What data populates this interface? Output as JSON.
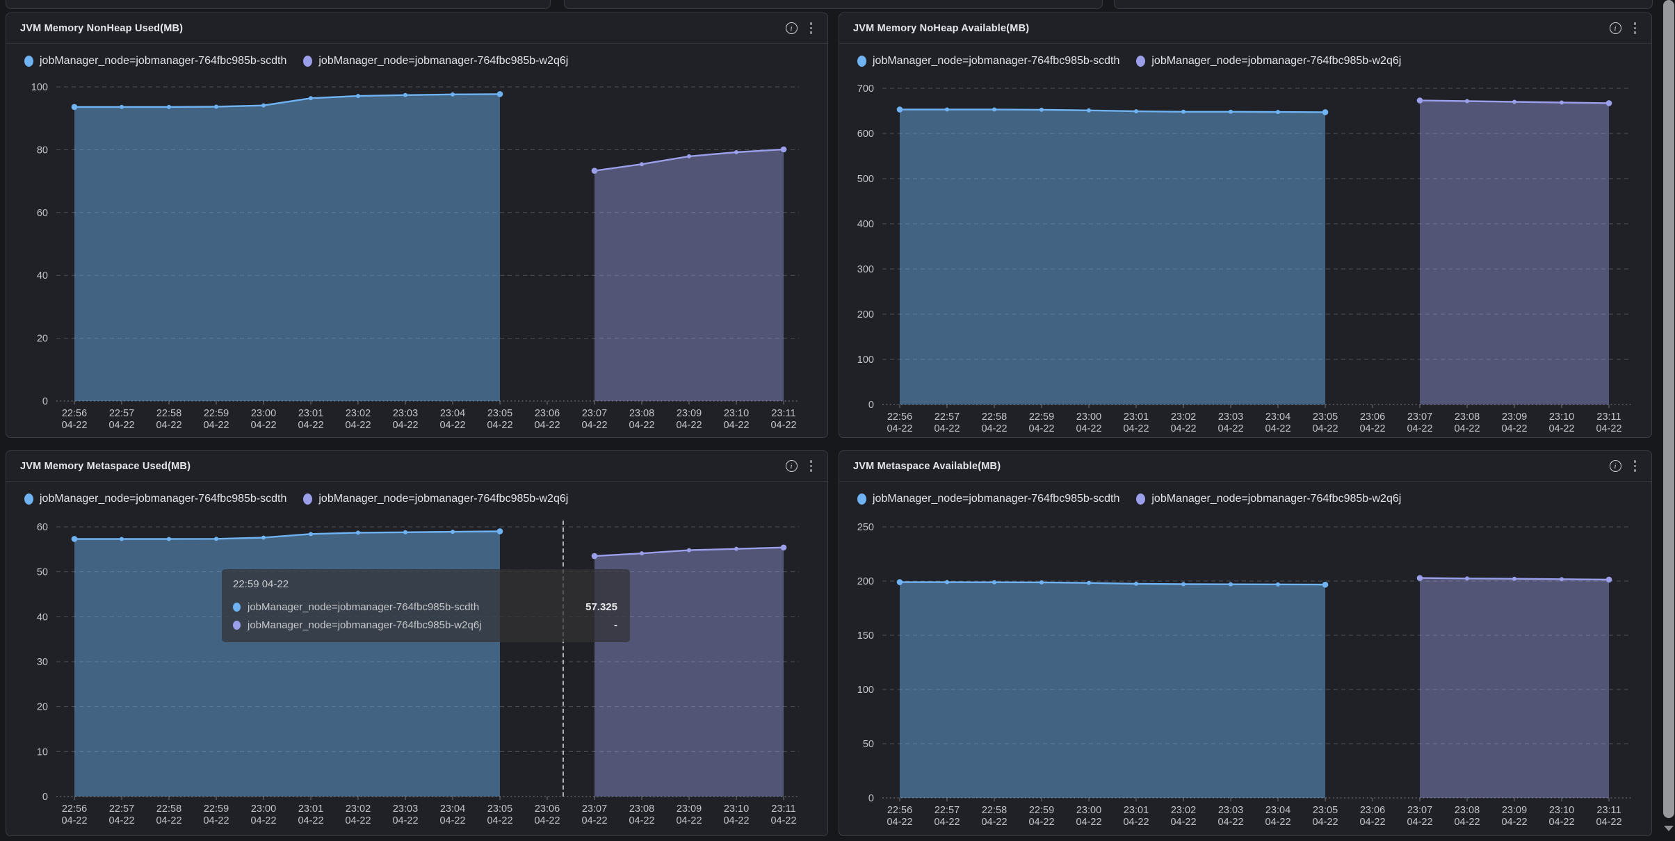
{
  "page": {
    "background": "#17181c",
    "panel_background": "#202127",
    "panel_border": "#3a3b41",
    "accent_blue": "#6fb3f2",
    "accent_purple": "#9b9ee8"
  },
  "tooltip": {
    "title": "22:59 04-22",
    "rows": [
      {
        "label": "jobManager_node=jobmanager-764fbc985b-scdth",
        "value": "57.325",
        "color": "#6fb3f2"
      },
      {
        "label": "jobManager_node=jobmanager-764fbc985b-w2q6j",
        "value": "-",
        "color": "#9b9ee8"
      }
    ]
  },
  "chart_data": [
    {
      "type": "area",
      "title": "JVM Memory NonHeap Used(MB)",
      "xlabel": "",
      "ylabel": "",
      "x_labels": [
        "22:56",
        "22:57",
        "22:58",
        "22:59",
        "23:00",
        "23:01",
        "23:02",
        "23:03",
        "23:04",
        "23:05",
        "23:06",
        "23:07",
        "23:08",
        "23:09",
        "23:10",
        "23:11"
      ],
      "x_date": "04-22",
      "yticks": [
        0,
        20,
        40,
        60,
        80,
        100
      ],
      "ylim": [
        0,
        100
      ],
      "grid": "dashed",
      "legend_position": "top-left",
      "series": [
        {
          "name": "jobManager_node=jobmanager-764fbc985b-scdth",
          "color": "#6fb3f2",
          "fill_opacity": 0.45,
          "start_index": 0,
          "values": [
            93.6,
            93.6,
            93.6,
            93.7,
            94.1,
            96.4,
            97.1,
            97.4,
            97.6,
            97.7
          ]
        },
        {
          "name": "jobManager_node=jobmanager-764fbc985b-w2q6j",
          "color": "#9b9ee8",
          "fill_opacity": 0.42,
          "start_index": 11,
          "values": [
            73.3,
            75.4,
            77.9,
            79.2,
            80.1
          ]
        }
      ]
    },
    {
      "type": "area",
      "title": "JVM Memory NoHeap Available(MB)",
      "xlabel": "",
      "ylabel": "",
      "x_labels": [
        "22:56",
        "22:57",
        "22:58",
        "22:59",
        "23:00",
        "23:01",
        "23:02",
        "23:03",
        "23:04",
        "23:05",
        "23:06",
        "23:07",
        "23:08",
        "23:09",
        "23:10",
        "23:11"
      ],
      "x_date": "04-22",
      "yticks": [
        0,
        100,
        200,
        300,
        400,
        500,
        600,
        700
      ],
      "ylim": [
        0,
        700
      ],
      "grid": "dashed",
      "legend_position": "top-left",
      "series": [
        {
          "name": "jobManager_node=jobmanager-764fbc985b-scdth",
          "color": "#6fb3f2",
          "fill_opacity": 0.45,
          "start_index": 0,
          "values": [
            653,
            653,
            653,
            652.5,
            651,
            649,
            648,
            648,
            647.5,
            647
          ]
        },
        {
          "name": "jobManager_node=jobmanager-764fbc985b-w2q6j",
          "color": "#9b9ee8",
          "fill_opacity": 0.42,
          "start_index": 11,
          "values": [
            673,
            671.5,
            670,
            668.5,
            667
          ]
        }
      ]
    },
    {
      "type": "area",
      "title": "JVM Memory Metaspace Used(MB)",
      "xlabel": "",
      "ylabel": "",
      "x_labels": [
        "22:56",
        "22:57",
        "22:58",
        "22:59",
        "23:00",
        "23:01",
        "23:02",
        "23:03",
        "23:04",
        "23:05",
        "23:06",
        "23:07",
        "23:08",
        "23:09",
        "23:10",
        "23:11"
      ],
      "x_date": "04-22",
      "yticks": [
        0,
        10,
        20,
        30,
        40,
        50,
        60
      ],
      "ylim": [
        0,
        60
      ],
      "grid": "dashed",
      "legend_position": "top-left",
      "series": [
        {
          "name": "jobManager_node=jobmanager-764fbc985b-scdth",
          "color": "#6fb3f2",
          "fill_opacity": 0.45,
          "start_index": 0,
          "values": [
            57.3,
            57.3,
            57.3,
            57.325,
            57.6,
            58.4,
            58.7,
            58.8,
            58.9,
            59.0
          ]
        },
        {
          "name": "jobManager_node=jobmanager-764fbc985b-w2q6j",
          "color": "#9b9ee8",
          "fill_opacity": 0.42,
          "start_index": 11,
          "values": [
            53.5,
            54.1,
            54.8,
            55.1,
            55.4
          ]
        }
      ]
    },
    {
      "type": "area",
      "title": "JVM Metaspace Available(MB)",
      "xlabel": "",
      "ylabel": "",
      "x_labels": [
        "22:56",
        "22:57",
        "22:58",
        "22:59",
        "23:00",
        "23:01",
        "23:02",
        "23:03",
        "23:04",
        "23:05",
        "23:06",
        "23:07",
        "23:08",
        "23:09",
        "23:10",
        "23:11"
      ],
      "x_date": "04-22",
      "yticks": [
        0,
        50,
        100,
        150,
        200,
        250
      ],
      "ylim": [
        0,
        250
      ],
      "grid": "dashed",
      "legend_position": "top-left",
      "series": [
        {
          "name": "jobManager_node=jobmanager-764fbc985b-scdth",
          "color": "#6fb3f2",
          "fill_opacity": 0.45,
          "start_index": 0,
          "values": [
            199,
            199,
            198.9,
            198.8,
            198.3,
            197.5,
            197.1,
            197,
            196.9,
            196.7
          ]
        },
        {
          "name": "jobManager_node=jobmanager-764fbc985b-w2q6j",
          "color": "#9b9ee8",
          "fill_opacity": 0.42,
          "start_index": 11,
          "values": [
            202.8,
            202.4,
            202.1,
            201.7,
            201.3
          ]
        }
      ]
    }
  ]
}
